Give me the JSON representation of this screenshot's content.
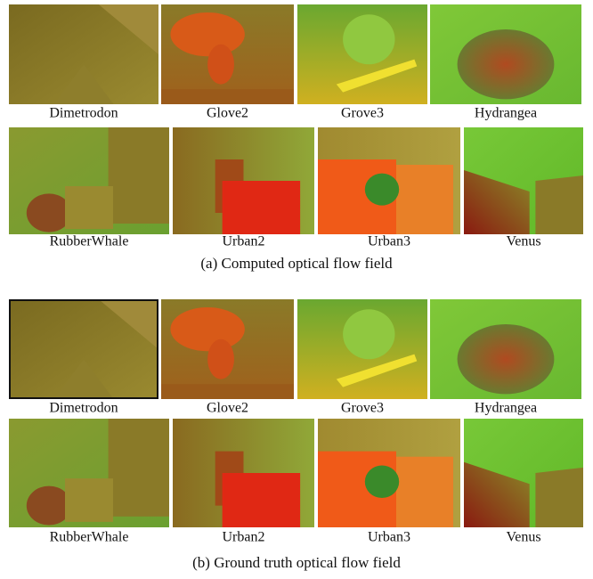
{
  "panels": [
    {
      "caption": "(a)  Computed optical flow field",
      "rows": [
        [
          "Dimetrodon",
          "Glove2",
          "Grove3",
          "Hydrangea"
        ],
        [
          "RubberWhale",
          "Urban2",
          "Urban3",
          "Venus"
        ]
      ]
    },
    {
      "caption": "(b)  Ground truth optical flow field",
      "rows": [
        [
          "Dimetrodon",
          "Glove2",
          "Grove3",
          "Hydrangea"
        ],
        [
          "RubberWhale",
          "Urban2",
          "Urban3",
          "Venus"
        ]
      ]
    }
  ]
}
